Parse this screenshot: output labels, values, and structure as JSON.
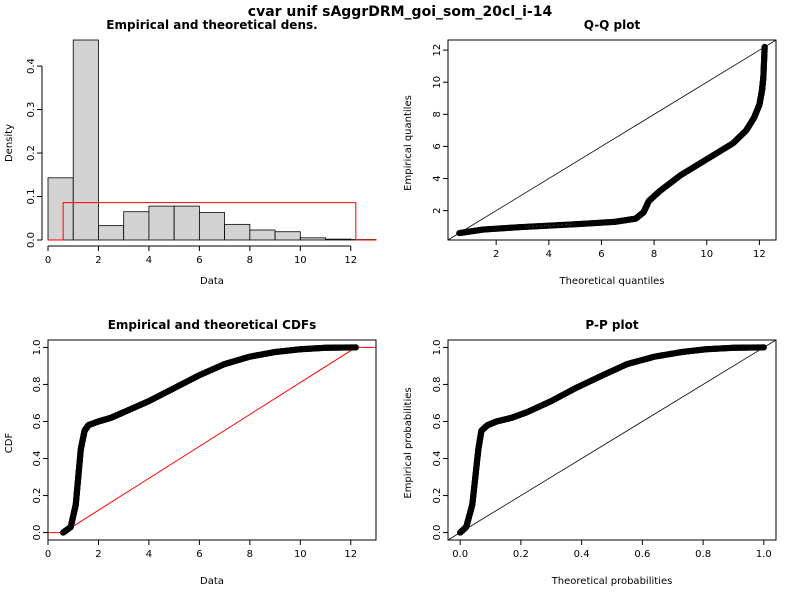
{
  "figure": {
    "title": "cvar unif sAggrDRM_goi_som_20cl_i-14"
  },
  "colors": {
    "bar_fill": "#d3d3d3",
    "theoretical": "#ff0000",
    "points": "#000000",
    "axis": "#000000"
  },
  "chart_data": [
    {
      "id": "density",
      "type": "bar",
      "title": "Empirical and theoretical dens.",
      "xlabel": "Data",
      "ylabel": "Density",
      "xlim": [
        0,
        13
      ],
      "ylim": [
        0,
        0.46
      ],
      "xticks": [
        0,
        2,
        4,
        6,
        8,
        10,
        12
      ],
      "yticks": [
        0.0,
        0.1,
        0.2,
        0.3,
        0.4
      ],
      "bins": [
        {
          "x0": 0,
          "x1": 1,
          "density": 0.143
        },
        {
          "x0": 1,
          "x1": 2,
          "density": 0.46
        },
        {
          "x0": 2,
          "x1": 3,
          "density": 0.033
        },
        {
          "x0": 3,
          "x1": 4,
          "density": 0.065
        },
        {
          "x0": 4,
          "x1": 5,
          "density": 0.078
        },
        {
          "x0": 5,
          "x1": 6,
          "density": 0.078
        },
        {
          "x0": 6,
          "x1": 7,
          "density": 0.063
        },
        {
          "x0": 7,
          "x1": 8,
          "density": 0.036
        },
        {
          "x0": 8,
          "x1": 9,
          "density": 0.023
        },
        {
          "x0": 9,
          "x1": 10,
          "density": 0.019
        },
        {
          "x0": 10,
          "x1": 11,
          "density": 0.005
        },
        {
          "x0": 11,
          "x1": 12,
          "density": 0.002
        },
        {
          "x0": 12,
          "x1": 13,
          "density": 0.001
        }
      ],
      "theoretical_uniform": {
        "min": 0.6,
        "max": 12.2,
        "density": 0.086,
        "x_start": 0,
        "x_end": 13
      }
    },
    {
      "id": "qq",
      "type": "scatter",
      "title": "Q-Q plot",
      "xlabel": "Theoretical quantiles",
      "ylabel": "Empirical quantiles",
      "xlim": [
        0.17,
        12.63
      ],
      "ylim": [
        0.17,
        12.63
      ],
      "xticks": [
        2,
        4,
        6,
        8,
        10,
        12
      ],
      "yticks": [
        2,
        4,
        6,
        8,
        10,
        12
      ],
      "curve": [
        [
          0.6,
          0.6
        ],
        [
          1.5,
          0.82
        ],
        [
          3,
          0.98
        ],
        [
          5,
          1.15
        ],
        [
          6.5,
          1.3
        ],
        [
          7.3,
          1.5
        ],
        [
          7.6,
          1.9
        ],
        [
          7.8,
          2.6
        ],
        [
          8.2,
          3.2
        ],
        [
          9,
          4.2
        ],
        [
          10,
          5.2
        ],
        [
          11,
          6.2
        ],
        [
          11.5,
          7.0
        ],
        [
          11.8,
          7.8
        ],
        [
          12,
          8.6
        ],
        [
          12.1,
          9.5
        ],
        [
          12.15,
          10.3
        ],
        [
          12.2,
          12.2
        ]
      ],
      "reference_line": [
        [
          0.17,
          0.17
        ],
        [
          12.63,
          12.63
        ]
      ]
    },
    {
      "id": "cdf",
      "type": "line",
      "title": "Empirical and theoretical CDFs",
      "xlabel": "Data",
      "ylabel": "CDF",
      "xlim": [
        0,
        13
      ],
      "ylim": [
        -0.04,
        1.04
      ],
      "xticks": [
        0,
        2,
        4,
        6,
        8,
        10,
        12
      ],
      "yticks": [
        0.0,
        0.2,
        0.4,
        0.6,
        0.8,
        1.0
      ],
      "empirical": [
        [
          0.6,
          0.0
        ],
        [
          0.9,
          0.03
        ],
        [
          1.1,
          0.15
        ],
        [
          1.2,
          0.3
        ],
        [
          1.3,
          0.45
        ],
        [
          1.45,
          0.55
        ],
        [
          1.6,
          0.58
        ],
        [
          2,
          0.6
        ],
        [
          2.5,
          0.62
        ],
        [
          3,
          0.65
        ],
        [
          4,
          0.71
        ],
        [
          5,
          0.78
        ],
        [
          6,
          0.85
        ],
        [
          7,
          0.91
        ],
        [
          8,
          0.95
        ],
        [
          9,
          0.975
        ],
        [
          10,
          0.99
        ],
        [
          11,
          0.998
        ],
        [
          12.2,
          1.0
        ]
      ],
      "theoretical_uniform": {
        "min": 0.6,
        "max": 12.2,
        "x_start": 0,
        "x_end": 13
      }
    },
    {
      "id": "pp",
      "type": "scatter",
      "title": "P-P plot",
      "xlabel": "Theoretical probabilities",
      "ylabel": "Empirical probabilities",
      "xlim": [
        -0.04,
        1.04
      ],
      "ylim": [
        -0.04,
        1.04
      ],
      "xticks": [
        0.0,
        0.2,
        0.4,
        0.6,
        0.8,
        1.0
      ],
      "yticks": [
        0.0,
        0.2,
        0.4,
        0.6,
        0.8,
        1.0
      ],
      "curve": [
        [
          0.0,
          0.0
        ],
        [
          0.02,
          0.03
        ],
        [
          0.04,
          0.15
        ],
        [
          0.05,
          0.3
        ],
        [
          0.06,
          0.45
        ],
        [
          0.07,
          0.55
        ],
        [
          0.09,
          0.58
        ],
        [
          0.12,
          0.6
        ],
        [
          0.17,
          0.62
        ],
        [
          0.22,
          0.65
        ],
        [
          0.3,
          0.71
        ],
        [
          0.38,
          0.78
        ],
        [
          0.47,
          0.85
        ],
        [
          0.55,
          0.91
        ],
        [
          0.64,
          0.95
        ],
        [
          0.73,
          0.975
        ],
        [
          0.81,
          0.99
        ],
        [
          0.9,
          0.998
        ],
        [
          1.0,
          1.0
        ]
      ],
      "reference_line": [
        [
          -0.04,
          -0.04
        ],
        [
          1.04,
          1.04
        ]
      ]
    }
  ]
}
